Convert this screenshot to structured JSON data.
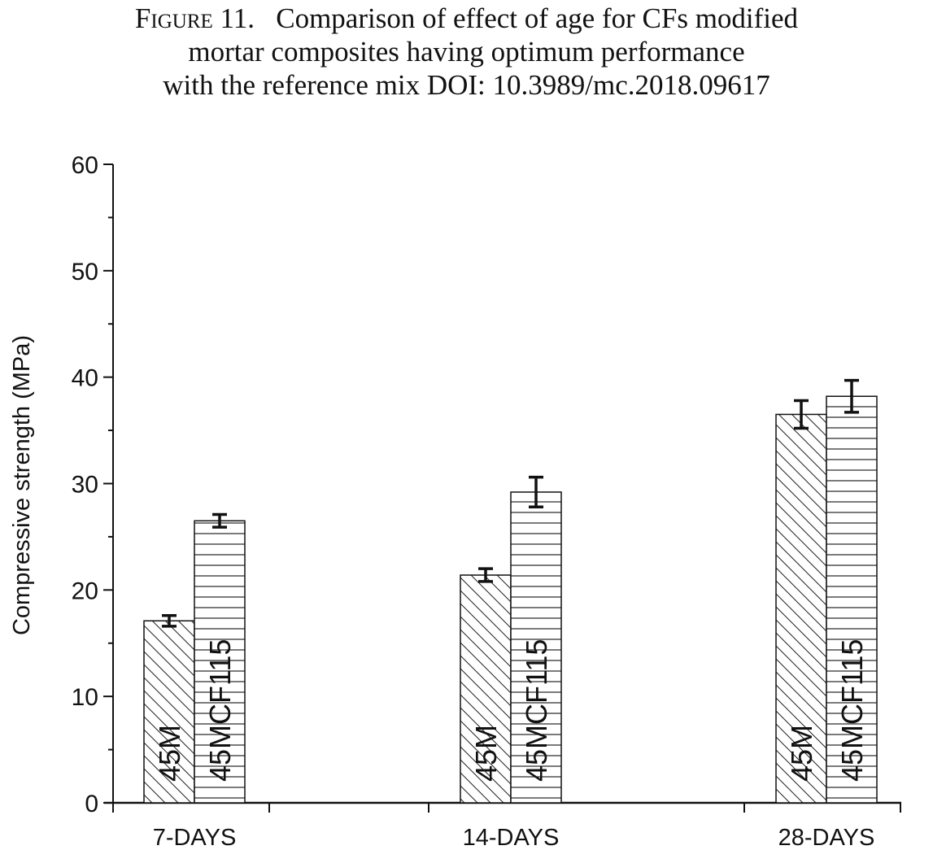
{
  "caption": {
    "label": "Figure 11.",
    "lines": [
      "Comparison of effect of age for CFs modified",
      "mortar composites having optimum performance",
      "with the reference mix DOI: 10.3989/mc.2018.09617"
    ]
  },
  "chart_data": {
    "type": "bar",
    "title": "",
    "xlabel": "",
    "ylabel": "Compressive strength (MPa)",
    "ylim": [
      0,
      60
    ],
    "yticks": [
      "0",
      "10",
      "20",
      "30",
      "40",
      "50",
      "60"
    ],
    "categories": [
      "7-DAYS",
      "14-DAYS",
      "28-DAYS"
    ],
    "series": [
      {
        "name": "45M",
        "pattern": "diagonal-hatch",
        "values": [
          17.1,
          21.4,
          36.5
        ],
        "error": [
          0.5,
          0.6,
          1.3
        ]
      },
      {
        "name": "45MCF115",
        "pattern": "horizontal-hatch",
        "values": [
          26.5,
          29.2,
          38.2
        ],
        "error": [
          0.6,
          1.4,
          1.5
        ]
      }
    ],
    "bar_label_orientation": "vertical",
    "grid": false,
    "legend": "none"
  }
}
